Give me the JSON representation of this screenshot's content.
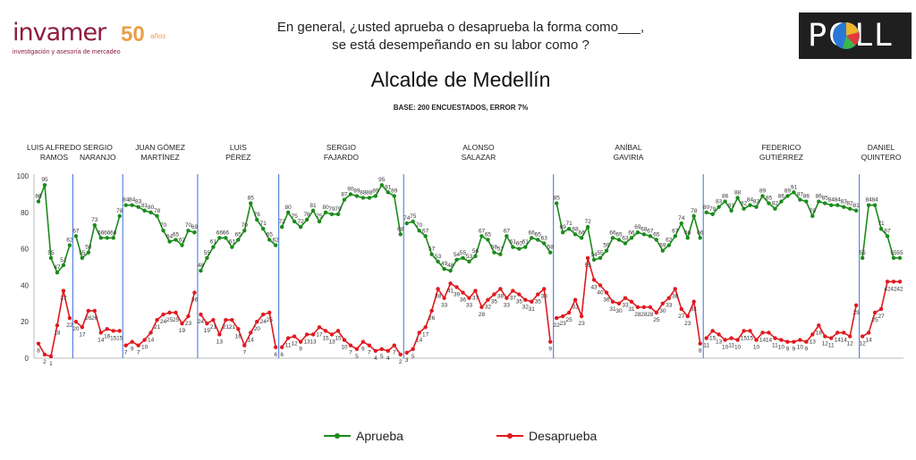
{
  "logo": {
    "word": "invamer",
    "fifty": "50",
    "anos": "años",
    "tagline": "investigación y asesoría de mercadeo"
  },
  "question": {
    "line1": "En general, ¿usted aprueba o desaprueba la forma como___,",
    "line2": "se está desempeñando en su labor como ?"
  },
  "poll_logo": {
    "text": "POLL"
  },
  "legend": {
    "aprueba": "Aprueba",
    "desaprueba": "Desaprueba"
  },
  "colors": {
    "aprueba": "#1a8b1a",
    "desaprueba": "#e0191e",
    "divider": "#3b6fd6"
  },
  "chart_data": {
    "type": "line",
    "title": "Alcalde de Medellín",
    "subtitle": "BASE: 200 ENCUESTADOS, ERROR 7%",
    "ylim": [
      0,
      100
    ],
    "yticks": [
      0,
      20,
      40,
      60,
      80,
      100
    ],
    "grid": false,
    "legend_position": "bottom",
    "periods": [
      {
        "name": [
          "LUIS ALFREDO",
          "RAMOS"
        ],
        "start": 0,
        "count": 6,
        "aprueba": [
          86,
          95,
          55,
          47,
          51,
          62
        ],
        "desaprueba": [
          8,
          2,
          1,
          18,
          37,
          22
        ]
      },
      {
        "name": [
          "SERGIO",
          "NARANJO"
        ],
        "start": 6,
        "count": 8,
        "aprueba": [
          67,
          55,
          58,
          73,
          66,
          66,
          66,
          78
        ],
        "desaprueba": [
          20,
          17,
          26,
          26,
          14,
          16,
          15,
          15
        ]
      },
      {
        "name": [
          "JUAN GÓMEZ",
          "MARTÍNEZ"
        ],
        "start": 14,
        "count": 12,
        "aprueba": [
          84,
          84,
          83,
          81,
          80,
          78,
          70,
          64,
          65,
          62,
          70,
          69
        ],
        "desaprueba": [
          7,
          9,
          7,
          10,
          14,
          21,
          24,
          25,
          25,
          19,
          23,
          36
        ]
      },
      {
        "name": [
          "LUIS",
          "PÉREZ"
        ],
        "start": 26,
        "count": 13,
        "aprueba": [
          48,
          55,
          61,
          66,
          66,
          61,
          65,
          70,
          85,
          76,
          71,
          65,
          62
        ],
        "desaprueba": [
          24,
          19,
          21,
          13,
          21,
          21,
          16,
          7,
          14,
          20,
          24,
          25,
          6
        ]
      },
      {
        "name": [
          "SERGIO",
          "FAJARDO"
        ],
        "start": 39,
        "count": 20,
        "aprueba": [
          72,
          80,
          75,
          72,
          76,
          81,
          75,
          80,
          79,
          79,
          87,
          90,
          89,
          88,
          88,
          89,
          95,
          91,
          89,
          68
        ],
        "desaprueba": [
          6,
          11,
          12,
          9,
          13,
          13,
          17,
          15,
          13,
          15,
          10,
          7,
          5,
          9,
          7,
          4,
          5,
          4,
          7,
          2
        ]
      },
      {
        "name": [
          "ALONSO",
          "SALAZAR"
        ],
        "start": 59,
        "count": 24,
        "aprueba": [
          74,
          75,
          70,
          67,
          57,
          53,
          49,
          48,
          54,
          55,
          53,
          56,
          67,
          65,
          58,
          57,
          67,
          61,
          60,
          61,
          66,
          65,
          63,
          58
        ],
        "desaprueba": [
          3,
          5,
          14,
          17,
          26,
          38,
          33,
          41,
          39,
          36,
          33,
          37,
          28,
          32,
          35,
          38,
          33,
          37,
          35,
          32,
          31,
          35,
          38,
          9
        ]
      },
      {
        "name": [
          "ANÍBAL",
          "GAVIRIA"
        ],
        "start": 83,
        "count": 24,
        "aprueba": [
          85,
          69,
          71,
          68,
          66,
          72,
          54,
          55,
          59,
          66,
          65,
          63,
          66,
          69,
          68,
          67,
          65,
          59,
          62,
          67,
          74,
          66,
          78,
          66
        ],
        "desaprueba": [
          22,
          23,
          25,
          32,
          23,
          55,
          43,
          40,
          36,
          31,
          30,
          33,
          31,
          28,
          28,
          28,
          25,
          30,
          33,
          38,
          27,
          23,
          31,
          8
        ]
      },
      {
        "name": [
          "FEDERICO",
          "GUTIÉRREZ"
        ],
        "start": 107,
        "count": 25,
        "aprueba": [
          80,
          79,
          83,
          86,
          81,
          88,
          82,
          84,
          83,
          89,
          85,
          82,
          86,
          89,
          91,
          87,
          86,
          78,
          86,
          85,
          84,
          84,
          83,
          82,
          81
        ],
        "desaprueba": [
          11,
          15,
          13,
          10,
          11,
          10,
          15,
          15,
          10,
          14,
          14,
          11,
          10,
          9,
          9,
          10,
          9,
          13,
          18,
          12,
          11,
          14,
          14,
          12,
          29
        ]
      },
      {
        "name": [
          "DANIEL",
          "QUINTERO"
        ],
        "start": 132,
        "count": 7,
        "aprueba": [
          55,
          84,
          84,
          71,
          67,
          55,
          55
        ],
        "desaprueba": [
          12,
          14,
          25,
          27,
          42,
          42,
          42
        ]
      }
    ]
  }
}
